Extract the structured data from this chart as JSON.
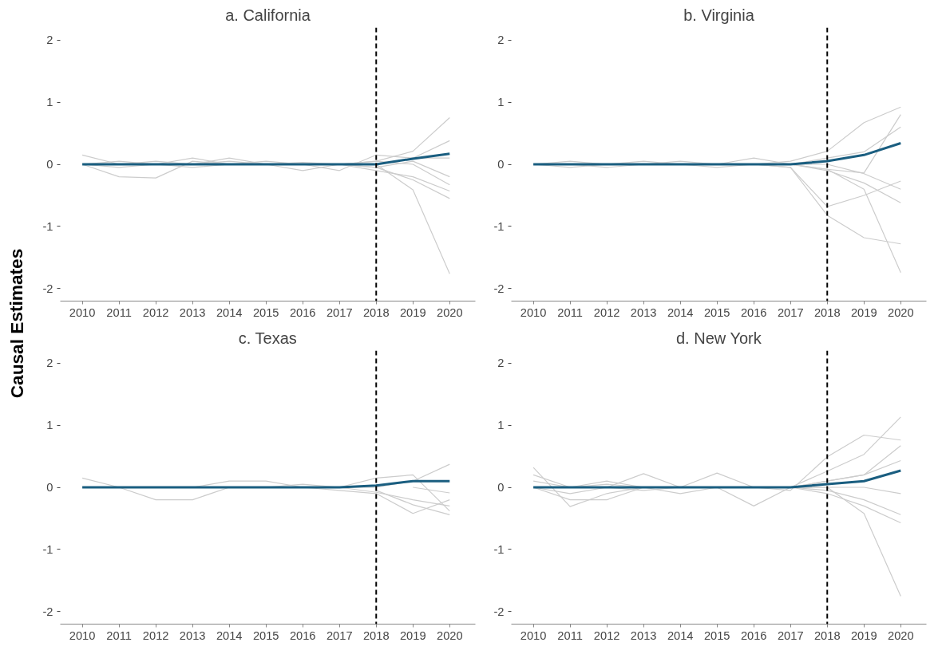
{
  "chart_data": [
    {
      "type": "line",
      "title": "a. California",
      "ylabel": "Causal Estimates",
      "x": [
        2010,
        2011,
        2012,
        2013,
        2014,
        2015,
        2016,
        2017,
        2018,
        2019,
        2020
      ],
      "xlim": [
        2009.4,
        2020.7
      ],
      "xticks": [
        2010,
        2011,
        2012,
        2013,
        2014,
        2015,
        2016,
        2017,
        2018,
        2019,
        2020
      ],
      "ylim": [
        -2.2,
        2.2
      ],
      "yticks": [
        -2,
        -1,
        0,
        1,
        2
      ],
      "grid": false,
      "ref_lines": [
        {
          "axis": "x",
          "value": 2018,
          "color": "#000000",
          "line_style": "dashed"
        }
      ],
      "series": [
        {
          "color": "#cccccc",
          "values": [
            0.15,
            0,
            0,
            0,
            0.1,
            0,
            0,
            0,
            0.05,
            0.21,
            0.75
          ]
        },
        {
          "color": "#cccccc",
          "values": [
            0,
            -0.2,
            -0.22,
            0.05,
            0,
            0,
            0,
            0,
            0,
            -0.41,
            -1.76
          ]
        },
        {
          "color": "#cccccc",
          "values": [
            0,
            0,
            0.05,
            0,
            0,
            0.05,
            0,
            -0.1,
            0.15,
            0.1,
            0.38
          ]
        },
        {
          "color": "#cccccc",
          "values": [
            0,
            0.05,
            0,
            0,
            0,
            0,
            0.03,
            0,
            -0.05,
            -0.25,
            -0.55
          ]
        },
        {
          "color": "#cccccc",
          "values": [
            0,
            -0.05,
            0,
            0.1,
            0,
            0,
            -0.1,
            0,
            -0.1,
            -0.2,
            -0.43
          ]
        },
        {
          "color": "#cccccc",
          "values": [
            0,
            0,
            0,
            -0.05,
            0,
            0,
            0,
            0,
            0.05,
            0,
            -0.33
          ]
        },
        {
          "color": "#cccccc",
          "values": [
            0,
            0,
            0,
            0,
            0,
            0,
            0,
            0,
            -0.05,
            0.05,
            -0.2
          ]
        },
        {
          "color": "#cccccc",
          "values": [
            0,
            0,
            0,
            0,
            0.05,
            0,
            0,
            0,
            0,
            0.1,
            0.1
          ]
        },
        {
          "color": "#1a5e80",
          "values": [
            0,
            0,
            0,
            0,
            0,
            0,
            0,
            0,
            0,
            0.09,
            0.17
          ]
        }
      ]
    },
    {
      "type": "line",
      "title": "b. Virginia",
      "x": [
        2010,
        2011,
        2012,
        2013,
        2014,
        2015,
        2016,
        2017,
        2018,
        2019,
        2020
      ],
      "xlim": [
        2009.4,
        2020.7
      ],
      "xticks": [
        2010,
        2011,
        2012,
        2013,
        2014,
        2015,
        2016,
        2017,
        2018,
        2019,
        2020
      ],
      "ylim": [
        -2.2,
        2.2
      ],
      "yticks": [
        -2,
        -1,
        0,
        1,
        2
      ],
      "grid": false,
      "ref_lines": [
        {
          "axis": "x",
          "value": 2018,
          "color": "#000000",
          "line_style": "dashed"
        }
      ],
      "series": [
        {
          "color": "#cccccc",
          "values": [
            0,
            0,
            0,
            0.05,
            0,
            0,
            0,
            0.05,
            0.21,
            0.67,
            0.92
          ]
        },
        {
          "color": "#cccccc",
          "values": [
            0,
            0,
            -0.05,
            0,
            0,
            0,
            0,
            -0.05,
            -0.82,
            -1.18,
            -1.28
          ]
        },
        {
          "color": "#cccccc",
          "values": [
            0,
            0.05,
            0,
            0,
            0.05,
            0,
            0,
            -0.05,
            -0.68,
            -0.5,
            -0.27
          ]
        },
        {
          "color": "#cccccc",
          "values": [
            0,
            0,
            0,
            0,
            0,
            -0.05,
            0,
            0,
            -0.08,
            -0.4,
            -1.74
          ]
        },
        {
          "color": "#cccccc",
          "values": [
            0,
            0,
            0,
            0,
            0,
            0,
            0.1,
            0,
            -0.08,
            -0.14,
            0.8
          ]
        },
        {
          "color": "#cccccc",
          "values": [
            0,
            0,
            0,
            0,
            0,
            0,
            0,
            0,
            0.1,
            0.2,
            0.6
          ]
        },
        {
          "color": "#cccccc",
          "values": [
            0,
            -0.05,
            0,
            0,
            0,
            0,
            0,
            0,
            -0.1,
            -0.3,
            -0.62
          ]
        },
        {
          "color": "#cccccc",
          "values": [
            0,
            0,
            0,
            0,
            0,
            0,
            0,
            0,
            0,
            -0.15,
            -0.4
          ]
        },
        {
          "color": "#1a5e80",
          "values": [
            0,
            0,
            0,
            0,
            0,
            0,
            0,
            0,
            0.05,
            0.15,
            0.34
          ]
        }
      ]
    },
    {
      "type": "line",
      "title": "c. Texas",
      "x": [
        2010,
        2011,
        2012,
        2013,
        2014,
        2015,
        2016,
        2017,
        2018,
        2019,
        2020
      ],
      "xlim": [
        2009.4,
        2020.7
      ],
      "xticks": [
        2010,
        2011,
        2012,
        2013,
        2014,
        2015,
        2016,
        2017,
        2018,
        2019,
        2020
      ],
      "ylim": [
        -2.2,
        2.2
      ],
      "yticks": [
        -2,
        -1,
        0,
        1,
        2
      ],
      "grid": false,
      "ref_lines": [
        {
          "axis": "x",
          "value": 2018,
          "color": "#000000",
          "line_style": "dashed"
        }
      ],
      "series": [
        {
          "color": "#cccccc",
          "values": [
            0.15,
            0,
            -0.2,
            -0.2,
            0,
            0,
            0,
            0,
            0,
            0.1,
            0.37
          ]
        },
        {
          "color": "#cccccc",
          "values": [
            0,
            0,
            0,
            0,
            0.1,
            0.1,
            0,
            0,
            0.15,
            0.2,
            -0.38
          ]
        },
        {
          "color": "#cccccc",
          "values": [
            0,
            0,
            0,
            0,
            0,
            0,
            0,
            -0.05,
            -0.1,
            -0.42,
            -0.2
          ]
        },
        {
          "color": "#cccccc",
          "x": [
            2018,
            2019,
            2020
          ],
          "values": [
            -0.05,
            -0.28,
            -0.44
          ]
        },
        {
          "color": "#cccccc",
          "x": [
            2019,
            2020
          ],
          "values": [
            0,
            -0.09
          ]
        },
        {
          "color": "#cccccc",
          "values": [
            0,
            0,
            0,
            0,
            0,
            0,
            0.05,
            0,
            -0.08,
            -0.2,
            -0.3
          ]
        },
        {
          "color": "#1a5e80",
          "values": [
            0,
            0,
            0,
            0,
            0,
            0,
            0,
            0,
            0.03,
            0.1,
            0.1
          ]
        }
      ]
    },
    {
      "type": "line",
      "title": "d. New York",
      "x": [
        2010,
        2011,
        2012,
        2013,
        2014,
        2015,
        2016,
        2017,
        2018,
        2019,
        2020
      ],
      "xlim": [
        2009.4,
        2020.7
      ],
      "xticks": [
        2010,
        2011,
        2012,
        2013,
        2014,
        2015,
        2016,
        2017,
        2018,
        2019,
        2020
      ],
      "ylim": [
        -2.2,
        2.2
      ],
      "yticks": [
        -2,
        -1,
        0,
        1,
        2
      ],
      "grid": false,
      "ref_lines": [
        {
          "axis": "x",
          "value": 2018,
          "color": "#000000",
          "line_style": "dashed"
        }
      ],
      "series": [
        {
          "color": "#cccccc",
          "values": [
            0.1,
            0,
            0,
            0.22,
            0,
            0,
            0,
            -0.05,
            0.49,
            0.84,
            0.76
          ]
        },
        {
          "color": "#cccccc",
          "values": [
            0.32,
            -0.31,
            -0.1,
            0,
            0,
            0,
            0,
            0,
            0.26,
            0.53,
            1.13
          ]
        },
        {
          "color": "#cccccc",
          "values": [
            0,
            0,
            0,
            0,
            0,
            0.23,
            0,
            0,
            0.1,
            0.2,
            0.67
          ]
        },
        {
          "color": "#cccccc",
          "values": [
            0,
            -0.2,
            -0.2,
            0,
            0,
            0,
            -0.3,
            0,
            0,
            -0.42,
            -1.75
          ]
        },
        {
          "color": "#cccccc",
          "values": [
            0.2,
            0,
            0.1,
            0,
            0,
            0,
            0,
            0,
            0.1,
            0.2,
            0.43
          ]
        },
        {
          "color": "#cccccc",
          "values": [
            0,
            -0.1,
            0,
            -0.05,
            0,
            0,
            0,
            0,
            -0.1,
            -0.3,
            -0.57
          ]
        },
        {
          "color": "#cccccc",
          "values": [
            0,
            0,
            0,
            0,
            -0.1,
            0,
            0,
            0,
            -0.05,
            -0.2,
            -0.44
          ]
        },
        {
          "color": "#cccccc",
          "values": [
            0,
            0,
            0.05,
            0,
            0,
            0,
            0,
            0,
            0,
            0,
            -0.1
          ]
        },
        {
          "color": "#1a5e80",
          "values": [
            0,
            0,
            0,
            0,
            0,
            0,
            0,
            0,
            0.05,
            0.1,
            0.27
          ]
        }
      ]
    }
  ]
}
